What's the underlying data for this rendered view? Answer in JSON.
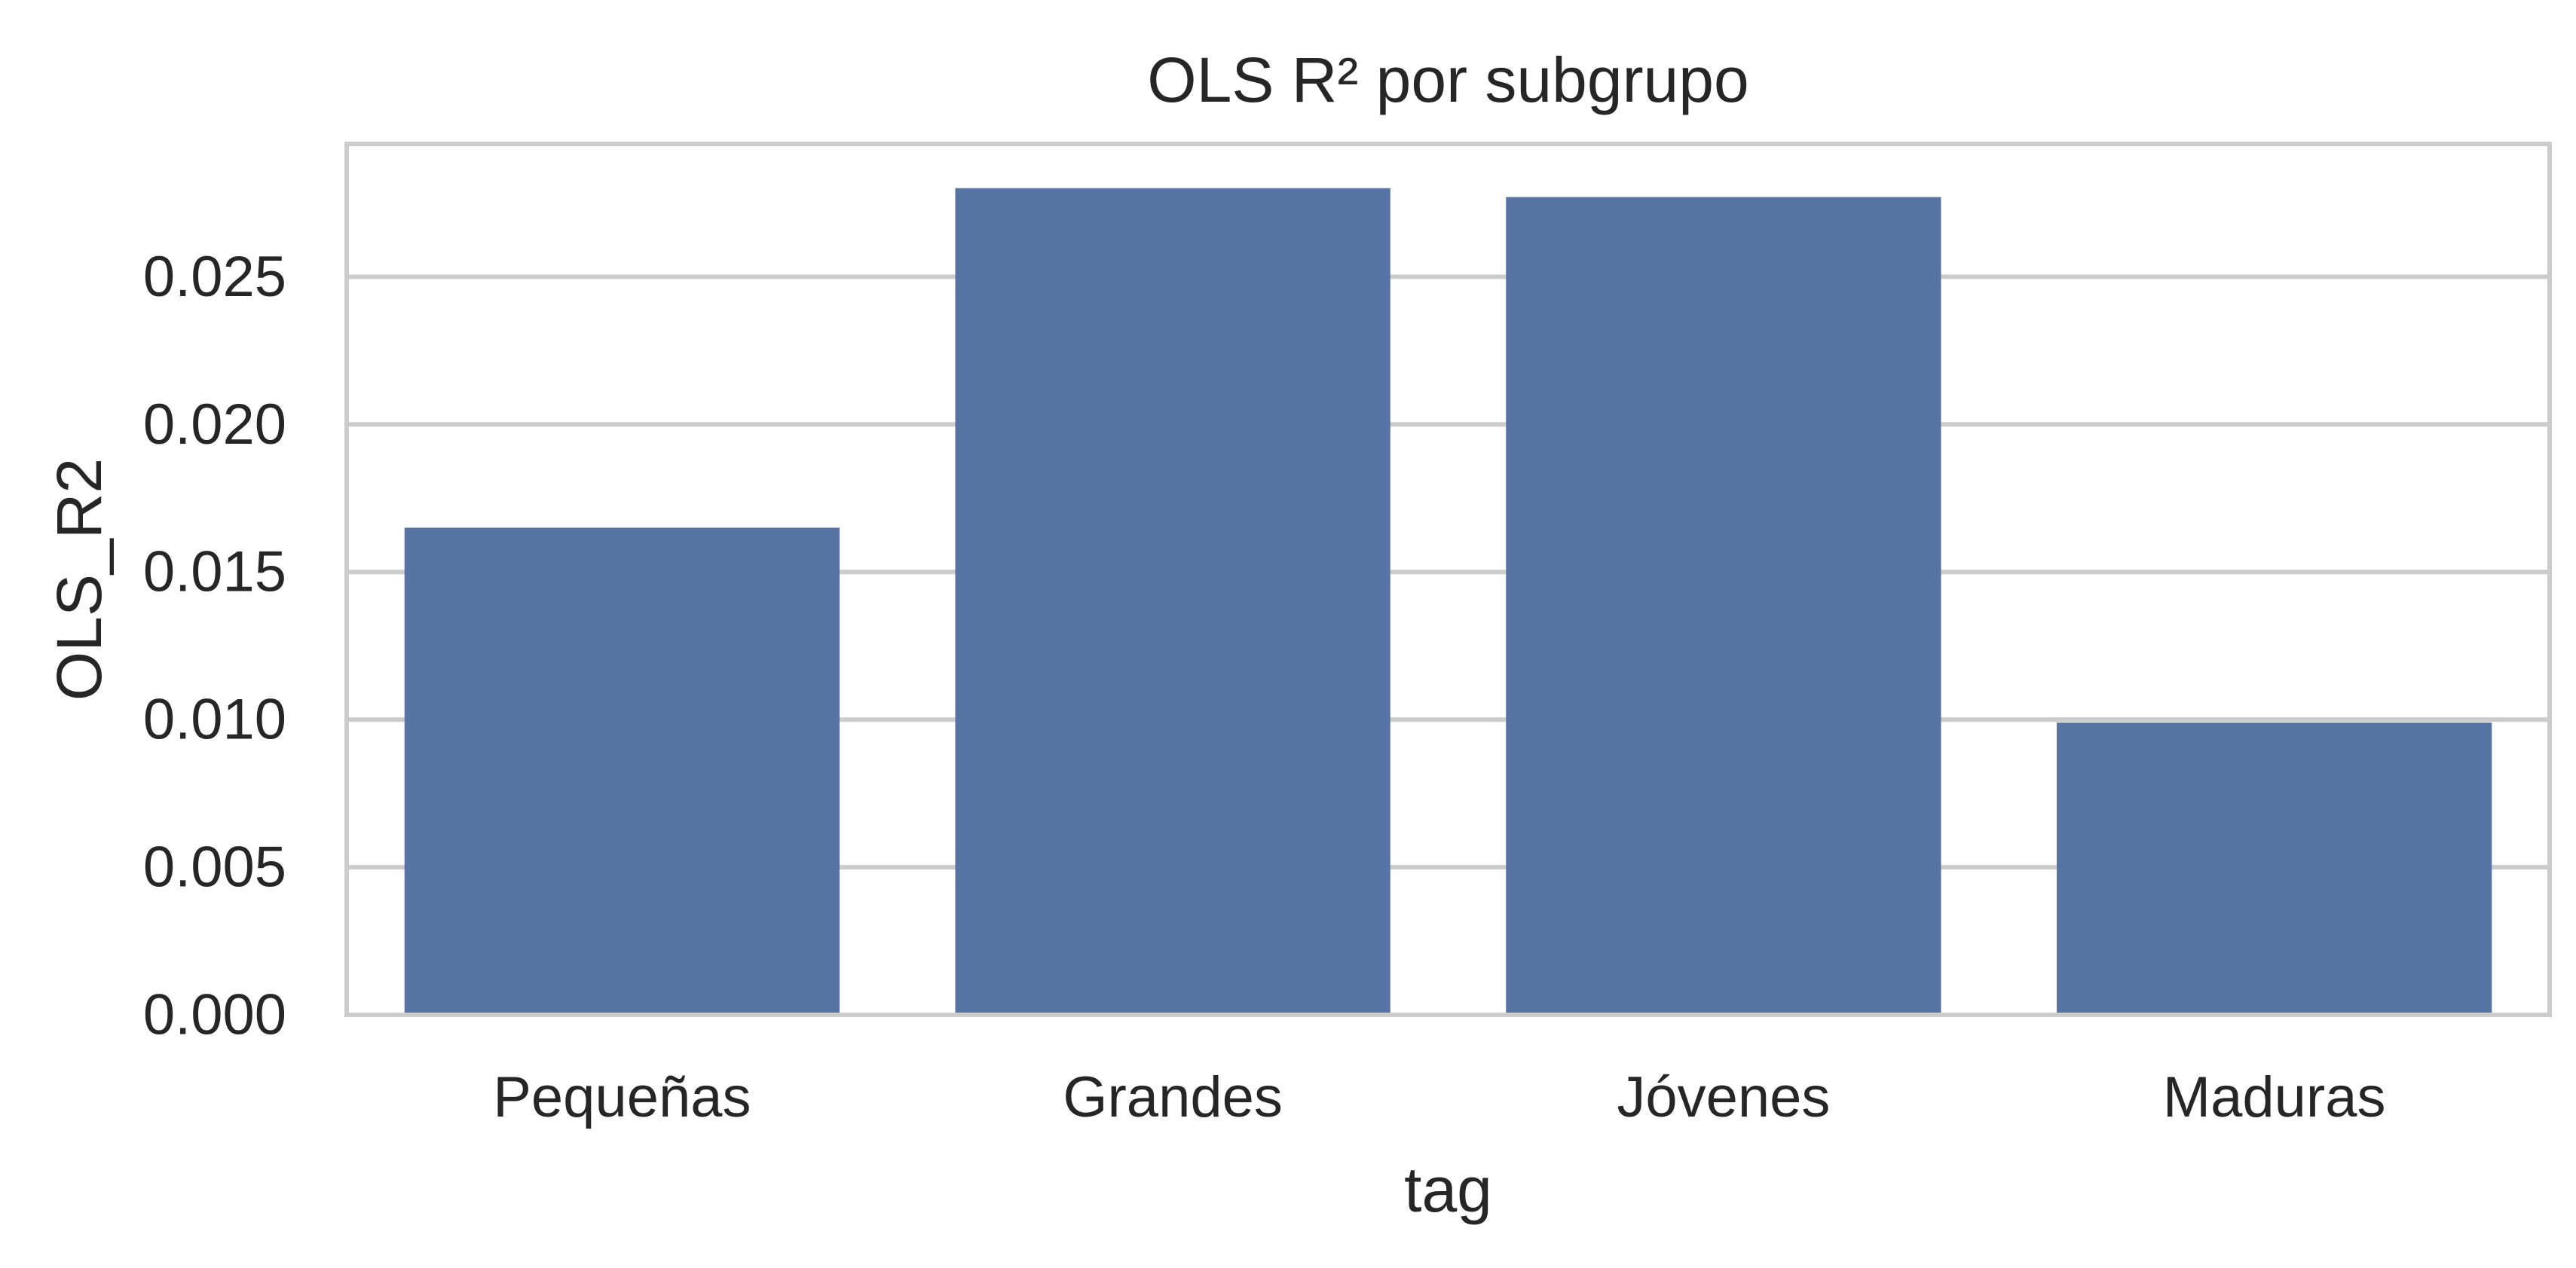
{
  "chart_data": {
    "type": "bar",
    "title": "OLS R² por subgrupo",
    "xlabel": "tag",
    "ylabel": "OLS_R2",
    "categories": [
      "Pequeñas",
      "Grandes",
      "Jóvenes",
      "Maduras"
    ],
    "values": [
      0.0165,
      0.028,
      0.0277,
      0.0099
    ],
    "ylim": [
      0,
      0.0295
    ],
    "yticks": [
      "0.000",
      "0.005",
      "0.010",
      "0.015",
      "0.020",
      "0.025"
    ],
    "grid": true,
    "legend": false,
    "colors": {
      "bar": "#5874a4",
      "grid": "#cccccc",
      "frame": "#cccccc"
    }
  }
}
